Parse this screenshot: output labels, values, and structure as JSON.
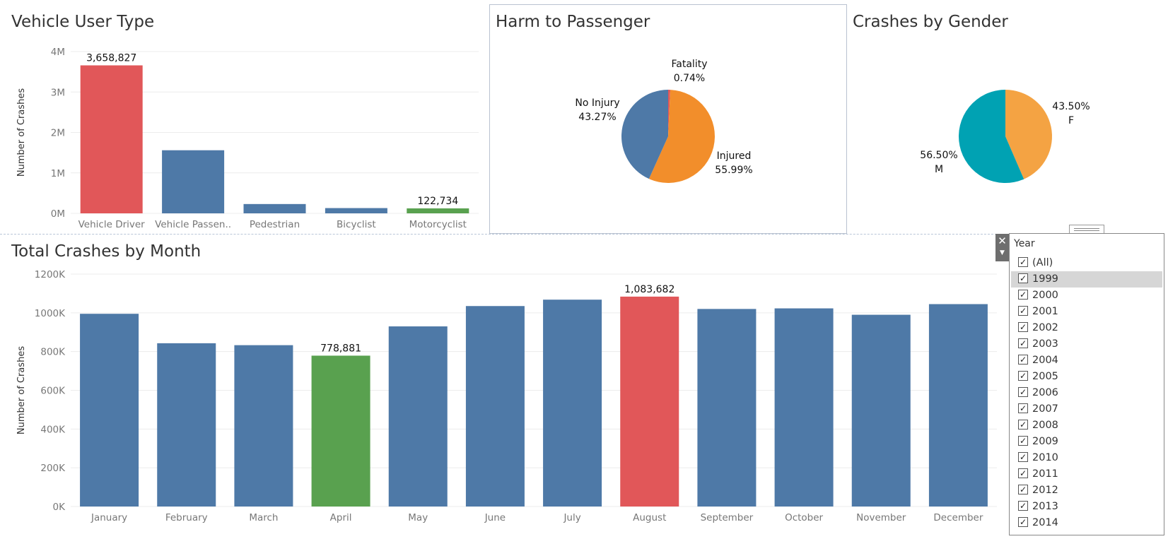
{
  "titles": {
    "vehicle": "Vehicle User Type",
    "harm": "Harm to Passenger",
    "gender": "Crashes by Gender",
    "month": "Total Crashes by Month"
  },
  "chart_data": [
    {
      "type": "bar",
      "title": "Vehicle User Type",
      "ylabel": "Number of Crashes",
      "ylim": [
        0,
        4000000
      ],
      "yticks": [
        "0M",
        "1M",
        "2M",
        "3M",
        "4M"
      ],
      "categories": [
        "Vehicle Driver",
        "Vehicle Passen..",
        "Pedestrian",
        "Bicyclist",
        "Motorcyclist"
      ],
      "values": [
        3658827,
        1560000,
        230000,
        130000,
        122734
      ],
      "colors": [
        "#e15759",
        "#4e79a7",
        "#4e79a7",
        "#4e79a7",
        "#59a14f"
      ],
      "data_labels": [
        "3,658,827",
        "",
        "",
        "",
        "122,734"
      ],
      "grid": true
    },
    {
      "type": "pie",
      "title": "Harm to Passenger",
      "slices": [
        {
          "label": "Fatality",
          "value": 0.74,
          "pct": "0.74%",
          "color": "#e15759"
        },
        {
          "label": "Injured",
          "value": 55.99,
          "pct": "55.99%",
          "color": "#f28e2b"
        },
        {
          "label": "No Injury",
          "value": 43.27,
          "pct": "43.27%",
          "color": "#4e79a7"
        }
      ]
    },
    {
      "type": "pie",
      "title": "Crashes by Gender",
      "slices": [
        {
          "label": "F",
          "value": 43.5,
          "pct": "43.50%",
          "color": "#f4a343"
        },
        {
          "label": "M",
          "value": 56.5,
          "pct": "56.50%",
          "color": "#00a2b3"
        }
      ]
    },
    {
      "type": "bar",
      "title": "Total Crashes by Month",
      "ylabel": "Number of Crashes",
      "ylim": [
        0,
        1200000
      ],
      "yticks": [
        "0K",
        "200K",
        "400K",
        "600K",
        "800K",
        "1000K",
        "1200K"
      ],
      "categories": [
        "January",
        "February",
        "March",
        "April",
        "May",
        "June",
        "July",
        "August",
        "September",
        "October",
        "November",
        "December"
      ],
      "values": [
        995000,
        843000,
        833000,
        778881,
        930000,
        1035000,
        1068000,
        1083682,
        1020000,
        1023000,
        990000,
        1045000
      ],
      "colors": [
        "#4e79a7",
        "#4e79a7",
        "#4e79a7",
        "#59a14f",
        "#4e79a7",
        "#4e79a7",
        "#4e79a7",
        "#e15759",
        "#4e79a7",
        "#4e79a7",
        "#4e79a7",
        "#4e79a7"
      ],
      "data_labels": [
        "",
        "",
        "",
        "778,881",
        "",
        "",
        "",
        "1,083,682",
        "",
        "",
        "",
        ""
      ],
      "grid": true
    }
  ],
  "filter": {
    "title": "Year",
    "close_icon": "close-icon",
    "menu_icon": "dropdown-icon",
    "check_mark": "✓",
    "highlighted": "1999",
    "items": [
      "(All)",
      "1999",
      "2000",
      "2001",
      "2002",
      "2003",
      "2004",
      "2005",
      "2006",
      "2007",
      "2008",
      "2009",
      "2010",
      "2011",
      "2012",
      "2013",
      "2014"
    ]
  }
}
